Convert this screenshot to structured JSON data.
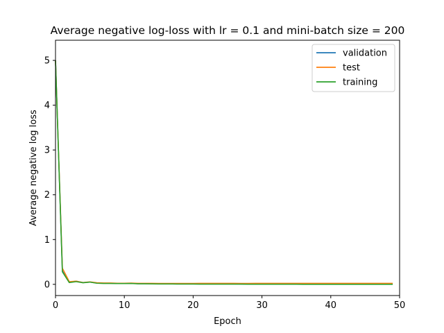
{
  "chart_data": {
    "type": "line",
    "title": "Average negative log-loss with lr = 0.1 and mini-batch size = 200",
    "xlabel": "Epoch",
    "ylabel": "Average negative log loss",
    "xlim": [
      0,
      50
    ],
    "ylim": [
      -0.25,
      5.45
    ],
    "xticks": [
      0,
      10,
      20,
      30,
      40,
      50
    ],
    "yticks": [
      0,
      1,
      2,
      3,
      4,
      5
    ],
    "grid": false,
    "legend_position": "top-right",
    "x": [
      0,
      1,
      2,
      3,
      4,
      5,
      6,
      7,
      8,
      9,
      10,
      11,
      12,
      13,
      14,
      15,
      16,
      17,
      18,
      19,
      20,
      21,
      22,
      23,
      24,
      25,
      26,
      27,
      28,
      29,
      30,
      31,
      32,
      33,
      34,
      35,
      36,
      37,
      38,
      39,
      40,
      41,
      42,
      43,
      44,
      45,
      46,
      47,
      48,
      49
    ],
    "series": [
      {
        "name": "validation",
        "color": "#1f77b4",
        "values": [
          5.0,
          0.3,
          0.05,
          0.07,
          0.04,
          0.05,
          0.03,
          0.025,
          0.025,
          0.02,
          0.02,
          0.025,
          0.015,
          0.015,
          0.015,
          0.012,
          0.012,
          0.012,
          0.01,
          0.01,
          0.01,
          0.01,
          0.01,
          0.01,
          0.01,
          0.01,
          0.01,
          0.008,
          0.008,
          0.008,
          0.007,
          0.007,
          0.007,
          0.007,
          0.007,
          0.006,
          0.006,
          0.006,
          0.006,
          0.006,
          0.006,
          0.006,
          0.006,
          0.006,
          0.006,
          0.006,
          0.006,
          0.006,
          0.006,
          0.006
        ]
      },
      {
        "name": "test",
        "color": "#ff7f0e",
        "values": [
          5.0,
          0.36,
          0.06,
          0.07,
          0.04,
          0.055,
          0.035,
          0.03,
          0.03,
          0.025,
          0.025,
          0.028,
          0.022,
          0.022,
          0.022,
          0.02,
          0.02,
          0.02,
          0.02,
          0.02,
          0.02,
          0.022,
          0.022,
          0.022,
          0.022,
          0.022,
          0.022,
          0.02,
          0.02,
          0.022,
          0.022,
          0.022,
          0.022,
          0.022,
          0.022,
          0.022,
          0.022,
          0.022,
          0.022,
          0.022,
          0.022,
          0.022,
          0.022,
          0.022,
          0.022,
          0.022,
          0.022,
          0.022,
          0.022,
          0.022
        ]
      },
      {
        "name": "training",
        "color": "#2ca02c",
        "values": [
          5.0,
          0.28,
          0.04,
          0.06,
          0.035,
          0.05,
          0.025,
          0.02,
          0.02,
          0.018,
          0.018,
          0.02,
          0.012,
          0.012,
          0.01,
          0.008,
          0.008,
          0.008,
          0.006,
          0.006,
          0.006,
          0.005,
          0.005,
          0.005,
          0.005,
          0.005,
          0.004,
          0.004,
          0.003,
          0.003,
          0.002,
          0.002,
          0.002,
          0.002,
          0.002,
          0.002,
          0.001,
          0.001,
          0.001,
          0.001,
          0.001,
          0.001,
          0.001,
          0.001,
          0.001,
          0.001,
          0.001,
          0.001,
          0.001,
          0.001
        ]
      }
    ]
  }
}
